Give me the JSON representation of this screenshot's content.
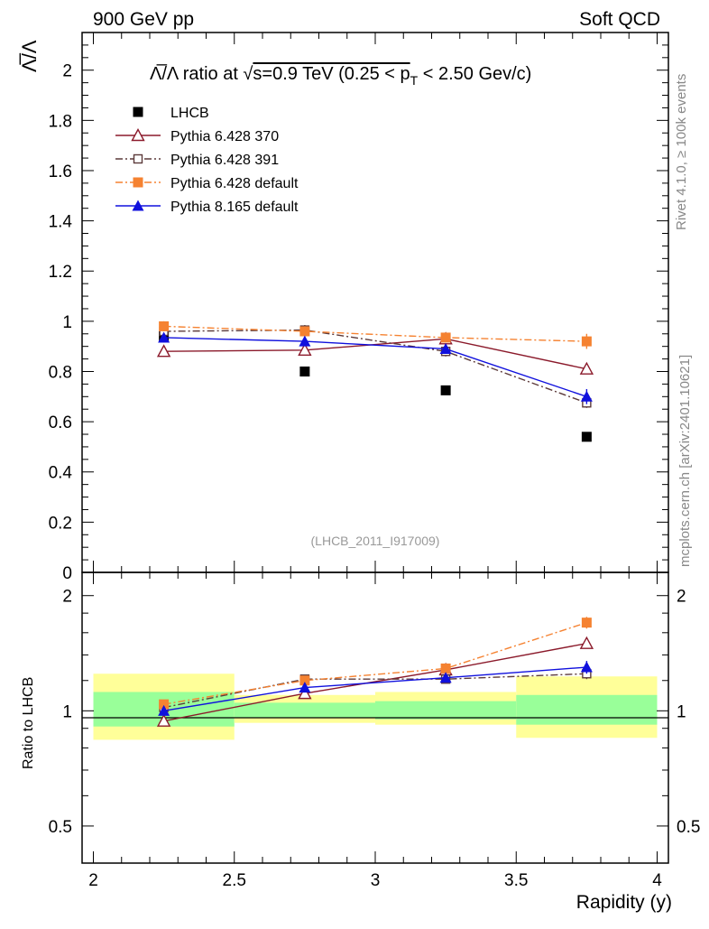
{
  "header": {
    "left": "900 GeV pp",
    "right": "Soft QCD"
  },
  "side_texts": {
    "rivet": "Rivet 4.1.0, ≥ 100k events",
    "mcplots": "mcplots.cern.ch [arXiv:2401.10621]"
  },
  "chart_data": [
    {
      "type": "scatter",
      "panel": "main",
      "title": "Λ̅/Λ ratio at √s=0.9 TeV (0.25 < pT < 2.50 GeV/c)",
      "title_parts": {
        "a": "Λ̅/Λ ratio at √",
        "b": "s=0.9 TeV (0.25 < p",
        "sub": "T",
        "c": " < 2.50 Gev/c)"
      },
      "ylabel": "Λ̅/Λ",
      "annotation": "(LHCB_2011_I917009)",
      "xlim": [
        1.96,
        4.04
      ],
      "ylim": [
        0,
        2.15
      ],
      "yticks": [
        0,
        0.2,
        0.4,
        0.6,
        0.8,
        1,
        1.2,
        1.4,
        1.6,
        1.8,
        2
      ],
      "ytick_labels": [
        "0",
        "0.2",
        "0.4",
        "0.6",
        "0.8",
        "1",
        "1.2",
        "1.4",
        "1.6",
        "1.8",
        "2"
      ],
      "x": [
        2.25,
        2.75,
        3.25,
        3.75
      ],
      "series": [
        {
          "name": "LHCB",
          "values": [
            0.94,
            0.8,
            0.725,
            0.54
          ],
          "errors": [
            0,
            0,
            0,
            0
          ],
          "color": "#000000",
          "marker": "square-filled",
          "line": "none"
        },
        {
          "name": "Pythia 6.428 370",
          "values": [
            0.88,
            0.885,
            0.93,
            0.81
          ],
          "errors": [
            0.015,
            0.015,
            0.02,
            0.02
          ],
          "color": "#8b1a2b",
          "marker": "triangle-open",
          "line": "solid"
        },
        {
          "name": "Pythia 6.428 391",
          "values": [
            0.96,
            0.965,
            0.88,
            0.675
          ],
          "errors": [
            0.015,
            0.02,
            0.02,
            0.02
          ],
          "color": "#5c3a3a",
          "marker": "square-open",
          "line": "dashdot"
        },
        {
          "name": "Pythia 6.428 default",
          "values": [
            0.98,
            0.96,
            0.935,
            0.92
          ],
          "errors": [
            0.02,
            0.02,
            0.02,
            0.03
          ],
          "color": "#f58231",
          "marker": "square-filled",
          "line": "dashdot"
        },
        {
          "name": "Pythia 8.165 default",
          "values": [
            0.935,
            0.92,
            0.89,
            0.7
          ],
          "errors": [
            0.015,
            0.015,
            0.015,
            0.03
          ],
          "color": "#1010dd",
          "marker": "triangle-filled",
          "line": "solid"
        }
      ]
    },
    {
      "type": "scatter",
      "panel": "ratio",
      "ylabel": "Ratio to LHCB",
      "xlabel": "Rapidity (y)",
      "xlim": [
        1.96,
        4.04
      ],
      "ylim": [
        0.4,
        2.3
      ],
      "log_y": true,
      "yticks": [
        0.5,
        1,
        2
      ],
      "ytick_labels": [
        "0.5",
        "1",
        "2"
      ],
      "xticks": [
        2,
        2.5,
        3,
        3.5,
        4
      ],
      "xtick_labels": [
        "2",
        "2.5",
        "3",
        "3.5",
        "4"
      ],
      "bands": [
        {
          "x": [
            2.0,
            2.5
          ],
          "inner": [
            0.91,
            1.12
          ],
          "outer": [
            0.84,
            1.25
          ]
        },
        {
          "x": [
            2.5,
            3.0
          ],
          "inner": [
            0.96,
            1.05
          ],
          "outer": [
            0.93,
            1.1
          ]
        },
        {
          "x": [
            3.0,
            3.5
          ],
          "inner": [
            0.95,
            1.06
          ],
          "outer": [
            0.92,
            1.12
          ]
        },
        {
          "x": [
            3.5,
            4.0
          ],
          "inner": [
            0.92,
            1.1
          ],
          "outer": [
            0.85,
            1.23
          ]
        }
      ],
      "x": [
        2.25,
        2.75,
        3.25,
        3.75
      ],
      "series": [
        {
          "name": "Pythia 6.428 370",
          "values": [
            0.94,
            1.11,
            1.28,
            1.5
          ],
          "errors": [
            0.015,
            0.02,
            0.025,
            0.04
          ],
          "color": "#8b1a2b",
          "marker": "triangle-open",
          "line": "solid"
        },
        {
          "name": "Pythia 6.428 391",
          "values": [
            1.02,
            1.21,
            1.21,
            1.25
          ],
          "errors": [
            0.015,
            0.025,
            0.025,
            0.04
          ],
          "color": "#5c3a3a",
          "marker": "square-open",
          "line": "dashdot"
        },
        {
          "name": "Pythia 6.428 default",
          "values": [
            1.04,
            1.2,
            1.29,
            1.7
          ],
          "errors": [
            0.02,
            0.025,
            0.03,
            0.06
          ],
          "color": "#f58231",
          "marker": "square-filled",
          "line": "dashdot"
        },
        {
          "name": "Pythia 8.165 default",
          "values": [
            1.0,
            1.15,
            1.22,
            1.3
          ],
          "errors": [
            0.015,
            0.02,
            0.025,
            0.05
          ],
          "color": "#1010dd",
          "marker": "triangle-filled",
          "line": "solid"
        }
      ]
    }
  ]
}
